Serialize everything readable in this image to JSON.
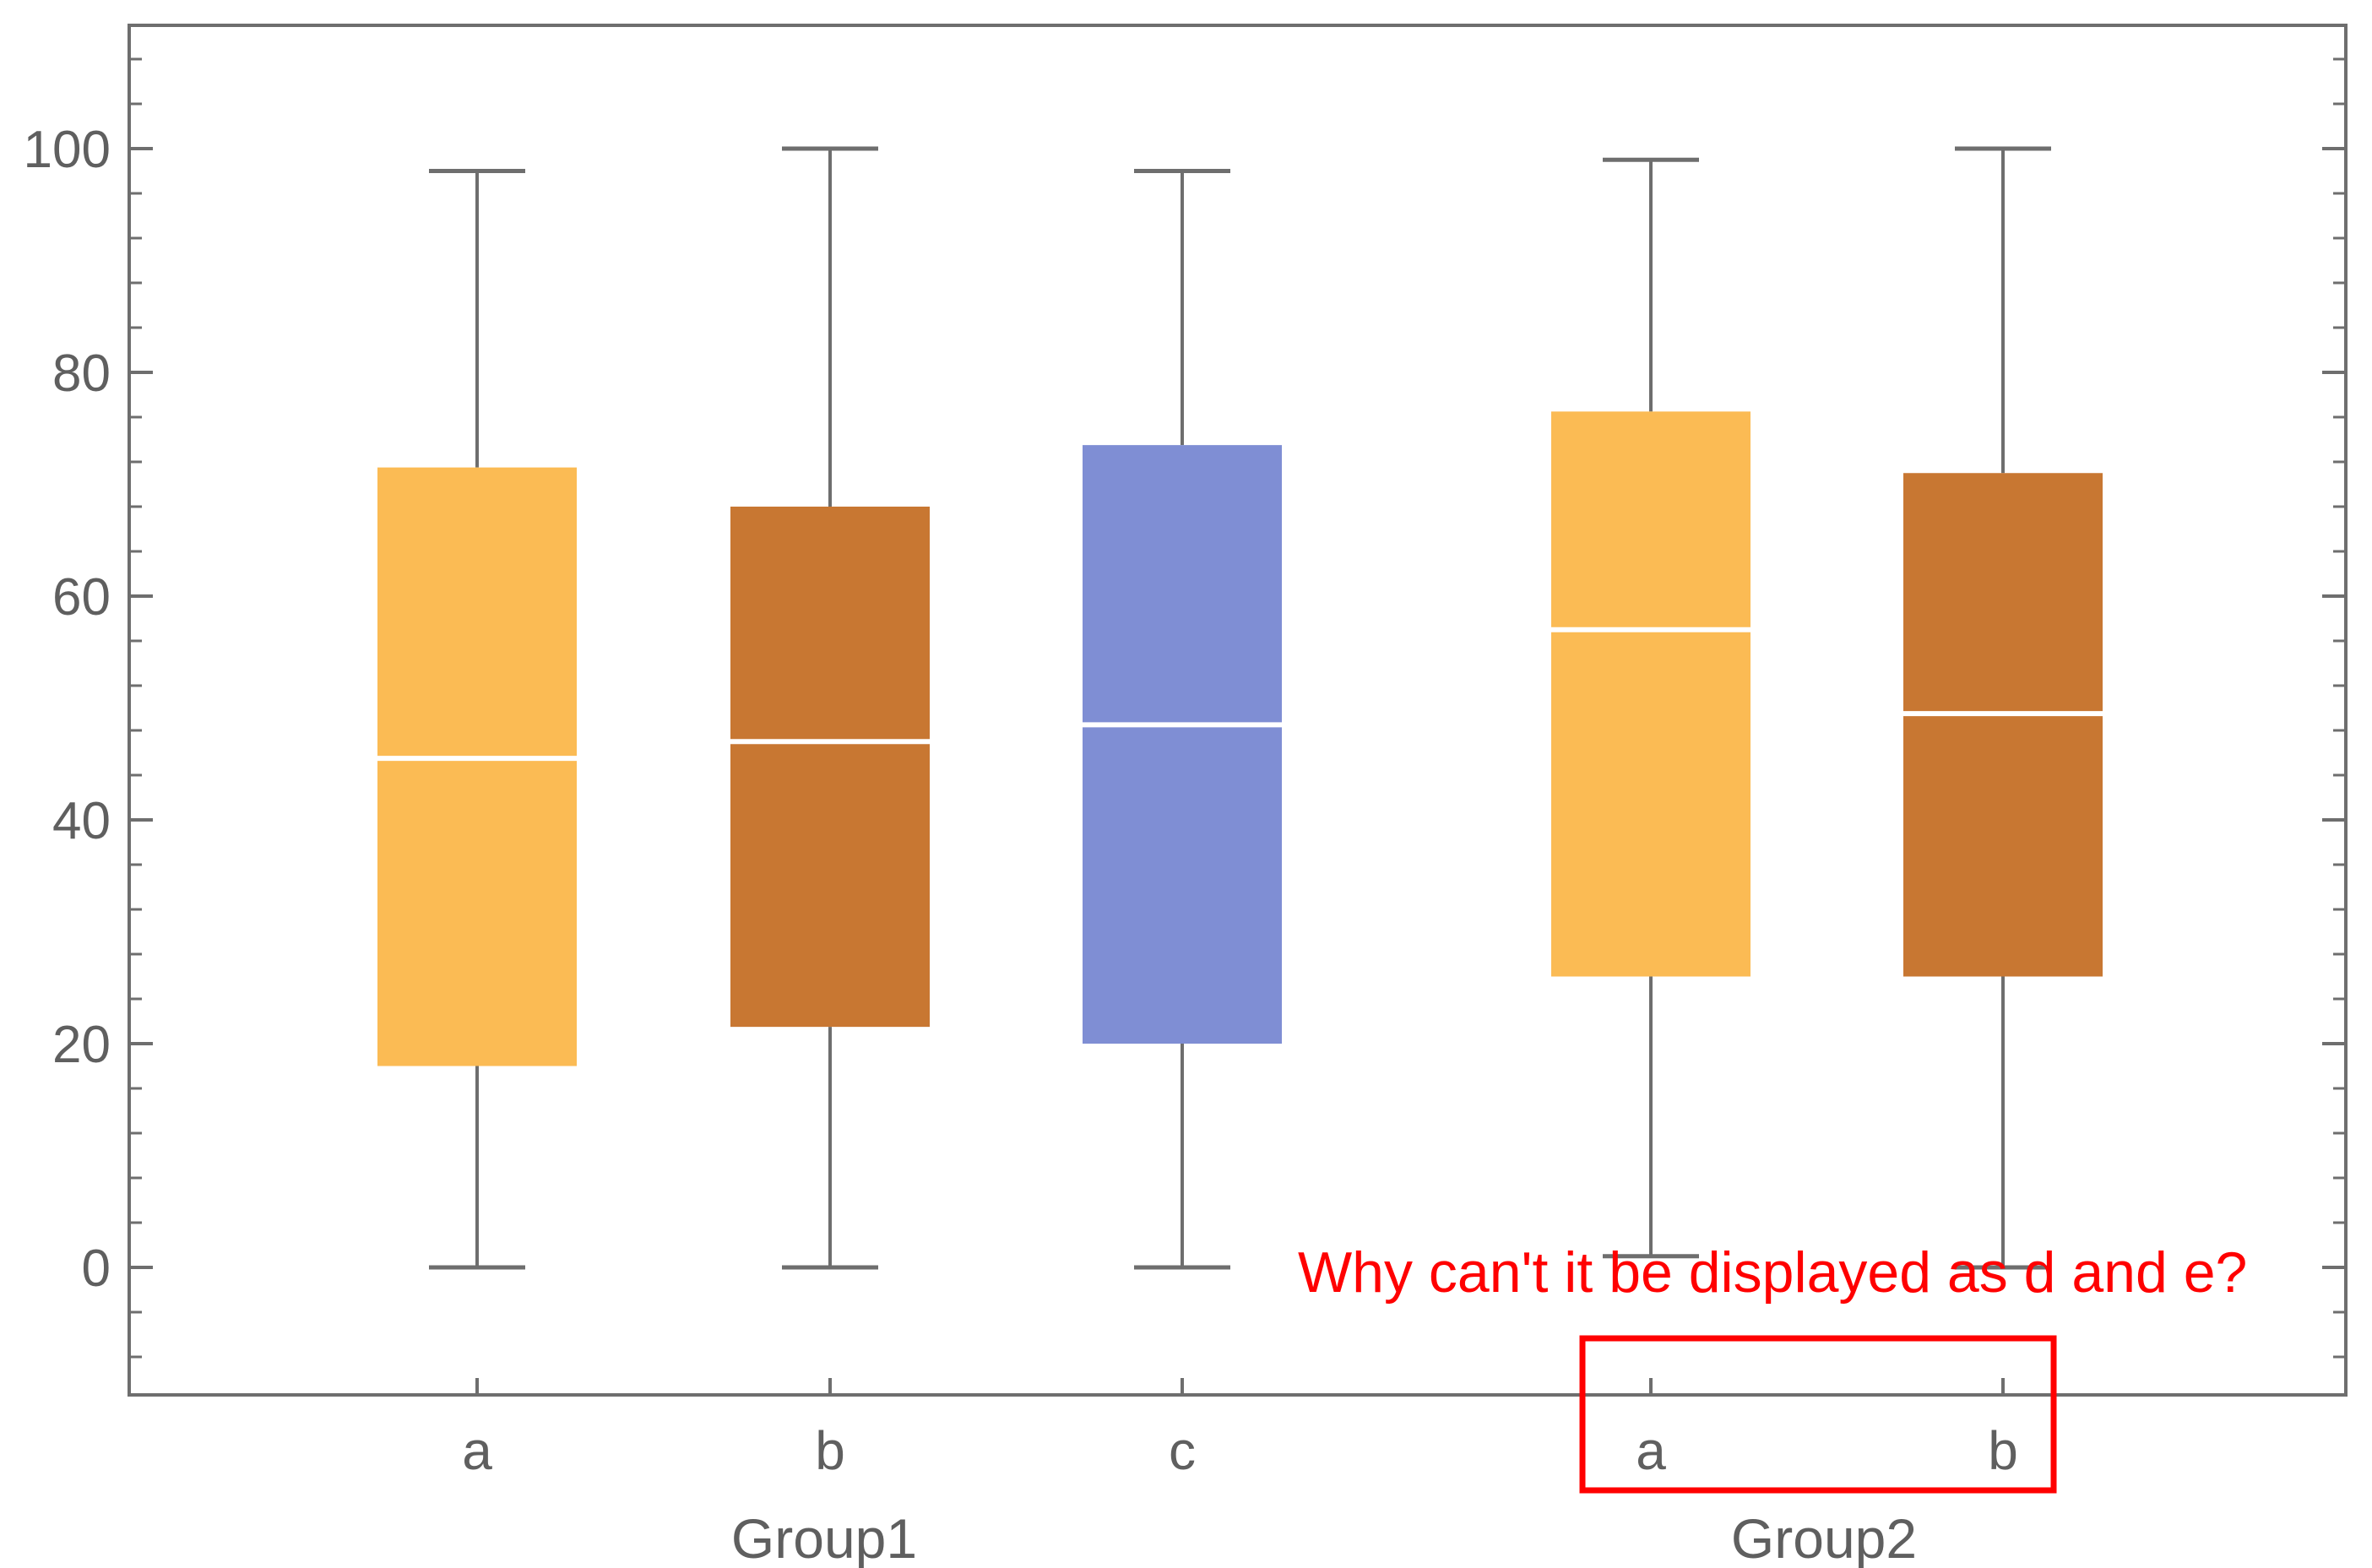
{
  "chart_data": {
    "type": "box",
    "yticks": [
      0,
      20,
      40,
      60,
      80,
      100
    ],
    "ylim": [
      -11,
      111
    ],
    "groups": [
      {
        "label": "Group1",
        "boxes": [
          {
            "label": "a",
            "color": "#fbbb54",
            "min": 0,
            "q1": 18,
            "median": 45.5,
            "q3": 71.5,
            "max": 98
          },
          {
            "label": "b",
            "color": "#c87732",
            "min": 0,
            "q1": 21.5,
            "median": 47,
            "q3": 68,
            "max": 100
          },
          {
            "label": "c",
            "color": "#7f8ed4",
            "min": 0,
            "q1": 20,
            "median": 48.5,
            "q3": 73.5,
            "max": 98
          }
        ]
      },
      {
        "label": "Group2",
        "boxes": [
          {
            "label": "a",
            "color": "#fbbb54",
            "min": 1,
            "q1": 26,
            "median": 57,
            "q3": 76.5,
            "max": 99
          },
          {
            "label": "b",
            "color": "#c87732",
            "min": 0,
            "q1": 26,
            "median": 49.5,
            "q3": 71,
            "max": 100
          }
        ]
      }
    ],
    "grid": false,
    "annotation": "Why can't it be displayed as d and e?"
  }
}
